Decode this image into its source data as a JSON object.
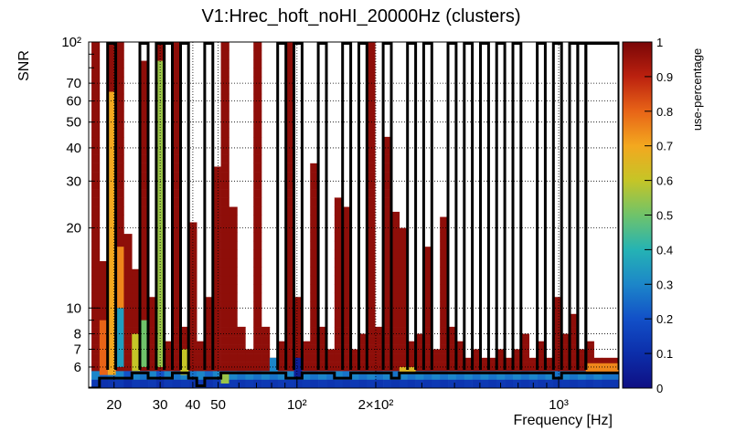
{
  "chart_data": {
    "type": "heatmap",
    "title": "V1:Hrec_hoft_noHI_20000Hz (clusters)",
    "xlabel": "Frequency [Hz]",
    "ylabel": "SNR",
    "zlabel": "use-percentage",
    "x_scale": "log",
    "y_scale": "log",
    "xlim": [
      16,
      1700
    ],
    "ylim": [
      5,
      100
    ],
    "zlim": [
      0,
      1
    ],
    "x_tick_labels": [
      {
        "value": 20,
        "label": "20"
      },
      {
        "value": 30,
        "label": "30"
      },
      {
        "value": 40,
        "label": "40"
      },
      {
        "value": 50,
        "label": "50"
      },
      {
        "value": 100,
        "label": "10²"
      },
      {
        "value": 200,
        "label": "2×10²"
      },
      {
        "value": 1000,
        "label": "10³"
      }
    ],
    "y_tick_labels": [
      {
        "value": 6,
        "label": "6"
      },
      {
        "value": 7,
        "label": "7"
      },
      {
        "value": 8,
        "label": "8"
      },
      {
        "value": 10,
        "label": "10"
      },
      {
        "value": 20,
        "label": "20"
      },
      {
        "value": 30,
        "label": "30"
      },
      {
        "value": 40,
        "label": "40"
      },
      {
        "value": 50,
        "label": "50"
      },
      {
        "value": 60,
        "label": "60"
      },
      {
        "value": 70,
        "label": "70"
      },
      {
        "value": 100,
        "label": "10²"
      }
    ],
    "colorbar_tick_labels": [
      "0",
      "0.1",
      "0.2",
      "0.3",
      "0.4",
      "0.5",
      "0.6",
      "0.7",
      "0.8",
      "0.9",
      "1"
    ],
    "grid": true,
    "n_freq_bins": 64,
    "n_snr_bins": 40,
    "freq_columns": [
      {
        "f": 16.4,
        "full": true,
        "blue_top": 5.6
      },
      {
        "f": 17.6,
        "full": false,
        "top": 15,
        "blue_top": 5.8
      },
      {
        "f": 18.9,
        "full": true,
        "blue_top": 5.7
      },
      {
        "f": 20.3,
        "full": true,
        "blue_top": 5.6
      },
      {
        "f": 21.8,
        "full": false,
        "top": 19,
        "blue_top": 6.0
      },
      {
        "f": 23.4,
        "full": false,
        "top": 14,
        "blue_top": 5.6
      },
      {
        "f": 25.1,
        "full": false,
        "top": 85,
        "blue_top": 5.7
      },
      {
        "f": 27.0,
        "full": false,
        "top": 11,
        "blue_top": 5.6
      },
      {
        "f": 29.0,
        "full": true,
        "blue_top": 6.0
      },
      {
        "f": 31.1,
        "full": false,
        "top": 7.5,
        "blue_top": 5.6
      },
      {
        "f": 33.4,
        "full": true,
        "blue_top": 5.7
      },
      {
        "f": 35.9,
        "full": false,
        "top": 8.5,
        "blue_top": 5.6
      },
      {
        "f": 38.5,
        "full": false,
        "top": 21,
        "blue_top": 5.7
      },
      {
        "f": 41.4,
        "full": false,
        "top": 7.5,
        "blue_top": 5.6
      },
      {
        "f": 44.4,
        "full": false,
        "top": 11,
        "blue_top": 5.8
      },
      {
        "f": 47.7,
        "full": false,
        "top": 34,
        "blue_top": 5.6
      },
      {
        "f": 51.2,
        "full": true,
        "blue_top": 5.7
      },
      {
        "f": 55.0,
        "full": false,
        "top": 24,
        "blue_top": 5.6
      },
      {
        "f": 59.1,
        "full": false,
        "top": 8.5,
        "blue_top": 5.7
      },
      {
        "f": 63.5,
        "full": false,
        "top": 7.0,
        "blue_top": 5.6
      },
      {
        "f": 68.2,
        "full": true,
        "blue_top": 5.7
      },
      {
        "f": 73.2,
        "full": false,
        "top": 8.5,
        "blue_top": 5.6
      },
      {
        "f": 78.6,
        "full": false,
        "top": 6.5,
        "blue_top": 5.7
      },
      {
        "f": 84.4,
        "full": false,
        "top": 7.5,
        "blue_top": 5.6
      },
      {
        "f": 90.7,
        "full": false,
        "top": 100,
        "blue_top": 5.6
      },
      {
        "f": 97.4,
        "full": false,
        "top": 11,
        "blue_top": 5.7
      },
      {
        "f": 104.6,
        "full": false,
        "top": 7.5,
        "blue_top": 5.6
      },
      {
        "f": 112.3,
        "full": false,
        "top": 35,
        "blue_top": 5.7
      },
      {
        "f": 120.6,
        "full": false,
        "top": 8.5,
        "blue_top": 5.6
      },
      {
        "f": 129.6,
        "full": false,
        "top": 7.0,
        "blue_top": 5.7
      },
      {
        "f": 139.1,
        "full": false,
        "top": 26,
        "blue_top": 5.6
      },
      {
        "f": 149.4,
        "full": false,
        "top": 24,
        "blue_top": 5.7
      },
      {
        "f": 160.5,
        "full": false,
        "top": 7.0,
        "blue_top": 5.6
      },
      {
        "f": 172.4,
        "full": false,
        "top": 8.0,
        "blue_top": 5.7
      },
      {
        "f": 185.1,
        "full": false,
        "top": 100,
        "blue_top": 5.6
      },
      {
        "f": 198.8,
        "full": false,
        "top": 8.5,
        "blue_top": 5.7
      },
      {
        "f": 213.5,
        "full": false,
        "top": 44,
        "blue_top": 5.6
      },
      {
        "f": 229.3,
        "full": false,
        "top": 23,
        "blue_top": 5.7
      },
      {
        "f": 246.2,
        "full": false,
        "top": 20,
        "blue_top": 5.6
      },
      {
        "f": 264.4,
        "full": false,
        "top": 7.5,
        "blue_top": 5.7
      },
      {
        "f": 284.0,
        "full": false,
        "top": 8.0,
        "blue_top": 5.6
      },
      {
        "f": 305.0,
        "full": false,
        "top": 17,
        "blue_top": 5.7
      },
      {
        "f": 327.5,
        "full": false,
        "top": 7.0,
        "blue_top": 5.6
      },
      {
        "f": 351.8,
        "full": false,
        "top": 22,
        "blue_top": 5.7
      },
      {
        "f": 377.8,
        "full": false,
        "top": 8.5,
        "blue_top": 5.6
      },
      {
        "f": 405.7,
        "full": false,
        "top": 7.5,
        "blue_top": 5.7
      },
      {
        "f": 435.7,
        "full": false,
        "top": 6.5,
        "blue_top": 5.6
      },
      {
        "f": 467.9,
        "full": false,
        "top": 7.0,
        "blue_top": 5.7
      },
      {
        "f": 502.5,
        "full": false,
        "top": 6.5,
        "blue_top": 5.6
      },
      {
        "f": 539.7,
        "full": false,
        "top": 6.5,
        "blue_top": 5.7
      },
      {
        "f": 579.6,
        "full": false,
        "top": 7.0,
        "blue_top": 5.6
      },
      {
        "f": 622.4,
        "full": false,
        "top": 6.5,
        "blue_top": 5.7
      },
      {
        "f": 668.4,
        "full": false,
        "top": 7.0,
        "blue_top": 5.6
      },
      {
        "f": 717.8,
        "full": false,
        "top": 8.0,
        "blue_top": 5.7
      },
      {
        "f": 770.9,
        "full": false,
        "top": 6.5,
        "blue_top": 5.6
      },
      {
        "f": 827.9,
        "full": false,
        "top": 7.5,
        "blue_top": 5.7
      },
      {
        "f": 889.1,
        "full": false,
        "top": 6.5,
        "blue_top": 5.6
      },
      {
        "f": 954.8,
        "full": false,
        "top": 11,
        "blue_top": 5.7
      },
      {
        "f": 1025.4,
        "full": false,
        "top": 8.0,
        "blue_top": 5.6
      },
      {
        "f": 1101.2,
        "full": false,
        "top": 9.5,
        "blue_top": 5.7
      },
      {
        "f": 1182.6,
        "full": false,
        "top": 7.0,
        "blue_top": 5.6
      },
      {
        "f": 1270.0,
        "full": false,
        "top": 7.5,
        "blue_top": 5.7
      },
      {
        "f": 1363.9,
        "full": false,
        "top": 6.5,
        "blue_top": 5.6
      },
      {
        "f": 1464.7,
        "full": false,
        "top": 6.5,
        "blue_top": 5.7
      }
    ],
    "colored_patches": [
      {
        "f_from": 20.3,
        "f_to": 21.8,
        "snr_from": 6.0,
        "snr_to": 10,
        "value": 0.35
      },
      {
        "f_from": 20.3,
        "f_to": 21.8,
        "snr_from": 10,
        "snr_to": 17,
        "value": 0.75
      },
      {
        "f_from": 18.9,
        "f_to": 20.3,
        "snr_from": 5.6,
        "snr_to": 65,
        "value": 0.7
      },
      {
        "f_from": 17.6,
        "f_to": 18.9,
        "snr_from": 5.6,
        "snr_to": 9,
        "value": 0.8
      },
      {
        "f_from": 29.0,
        "f_to": 31.1,
        "snr_from": 6.0,
        "snr_to": 85,
        "value": 0.55
      },
      {
        "f_from": 23.4,
        "f_to": 25.1,
        "snr_from": 5.8,
        "snr_to": 8,
        "value": 0.6
      },
      {
        "f_from": 25.1,
        "f_to": 27.0,
        "snr_from": 6.0,
        "snr_to": 9,
        "value": 0.5
      },
      {
        "f_from": 35.9,
        "f_to": 38.5,
        "snr_from": 5.6,
        "snr_to": 7,
        "value": 0.6
      },
      {
        "f_from": 51.2,
        "f_to": 55.0,
        "snr_from": 5.2,
        "snr_to": 5.7,
        "value": 0.55
      },
      {
        "f_from": 97.4,
        "f_to": 104.6,
        "snr_from": 5.4,
        "snr_to": 6.5,
        "value": 0.05
      },
      {
        "f_from": 78.6,
        "f_to": 84.4,
        "snr_from": 5.7,
        "snr_to": 6.5,
        "value": 0.3
      },
      {
        "f_from": 246.2,
        "f_to": 284.0,
        "snr_from": 5.7,
        "snr_to": 6.0,
        "value": 0.65
      },
      {
        "f_from": 1270.0,
        "f_to": 1700,
        "snr_from": 5.7,
        "snr_to": 6.2,
        "value": 0.75
      }
    ],
    "contour_boxes": [
      {
        "f_from": 18.9,
        "f_to": 20.3
      },
      {
        "f_from": 25.1,
        "f_to": 27.0
      },
      {
        "f_from": 29.0,
        "f_to": 31.1
      },
      {
        "f_from": 31.1,
        "f_to": 33.4
      },
      {
        "f_from": 35.9,
        "f_to": 38.5
      },
      {
        "f_from": 44.4,
        "f_to": 47.7
      },
      {
        "f_from": 84.4,
        "f_to": 90.7
      },
      {
        "f_from": 97.4,
        "f_to": 104.6
      },
      {
        "f_from": 120.6,
        "f_to": 129.6
      },
      {
        "f_from": 149.4,
        "f_to": 160.5
      },
      {
        "f_from": 172.4,
        "f_to": 185.1
      },
      {
        "f_from": 213.5,
        "f_to": 229.3
      },
      {
        "f_from": 264.4,
        "f_to": 284.0
      },
      {
        "f_from": 305.0,
        "f_to": 327.5
      },
      {
        "f_from": 377.8,
        "f_to": 405.7
      },
      {
        "f_from": 435.7,
        "f_to": 467.9
      },
      {
        "f_from": 502.5,
        "f_to": 539.7
      },
      {
        "f_from": 579.6,
        "f_to": 622.4
      },
      {
        "f_from": 668.4,
        "f_to": 717.8
      },
      {
        "f_from": 827.9,
        "f_to": 889.1
      },
      {
        "f_from": 954.8,
        "f_to": 1025.4
      },
      {
        "f_from": 1101.2,
        "f_to": 1182.6
      },
      {
        "f_from": 1182.6,
        "f_to": 1270.0
      },
      {
        "f_from": 1270.0,
        "f_to": 1700
      }
    ],
    "contour_bottom_steps": [
      {
        "f": 16.0,
        "snr": 5.0
      },
      {
        "f": 17.6,
        "snr": 5.45
      },
      {
        "f": 23.4,
        "snr": 5.7
      },
      {
        "f": 27.0,
        "snr": 5.45
      },
      {
        "f": 33.4,
        "snr": 5.7
      },
      {
        "f": 38.5,
        "snr": 5.45
      },
      {
        "f": 41.4,
        "snr": 5.1
      },
      {
        "f": 44.4,
        "snr": 5.45
      },
      {
        "f": 51.2,
        "snr": 5.7
      },
      {
        "f": 68.2,
        "snr": 5.7
      },
      {
        "f": 90.7,
        "snr": 5.45
      },
      {
        "f": 104.6,
        "snr": 5.7
      },
      {
        "f": 139.1,
        "snr": 5.45
      },
      {
        "f": 160.5,
        "snr": 5.7
      },
      {
        "f": 229.3,
        "snr": 5.45
      },
      {
        "f": 246.2,
        "snr": 5.7
      },
      {
        "f": 405.7,
        "snr": 5.7
      },
      {
        "f": 954.8,
        "snr": 5.45
      },
      {
        "f": 1025.4,
        "snr": 5.7
      },
      {
        "f": 1700,
        "snr": 5.7
      }
    ]
  }
}
